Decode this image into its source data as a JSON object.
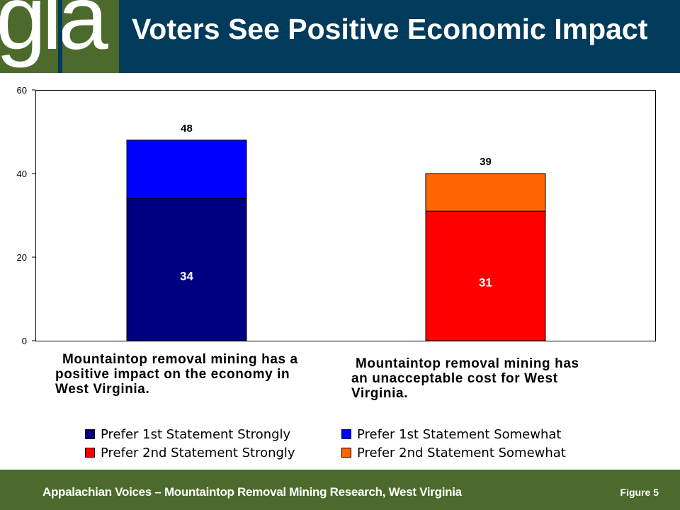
{
  "logo": {
    "text": "gla"
  },
  "title": "Voters See Positive Economic Impact",
  "chart_data": {
    "type": "bar",
    "stacked": true,
    "ylim": [
      0,
      60
    ],
    "yticks": [
      0,
      20,
      40,
      60
    ],
    "grid": false,
    "legend_position": "bottom",
    "categories": [
      "Mountaintop removal mining has a positive impact on the economy in West Virginia.",
      "Mountaintop removal mining has an unacceptable cost for West Virginia."
    ],
    "series": [
      {
        "name": "Prefer 1st Statement Strongly",
        "color": "#000080",
        "values": [
          34,
          null
        ]
      },
      {
        "name": "Prefer 1st Statement Somewhat",
        "color": "#0000ff",
        "values": [
          14,
          null
        ]
      },
      {
        "name": "Prefer 2nd Statement Strongly",
        "color": "#ff0000",
        "values": [
          null,
          31
        ]
      },
      {
        "name": "Prefer 2nd Statement Somewhat",
        "color": "#ff6600",
        "values": [
          null,
          9
        ]
      }
    ],
    "totals": [
      "48",
      "39"
    ],
    "inner_labels": [
      "34",
      "31"
    ]
  },
  "footer": {
    "text": "Appalachian Voices – Mountaintop Removal Mining Research, West Virginia",
    "figure": "Figure 5"
  }
}
